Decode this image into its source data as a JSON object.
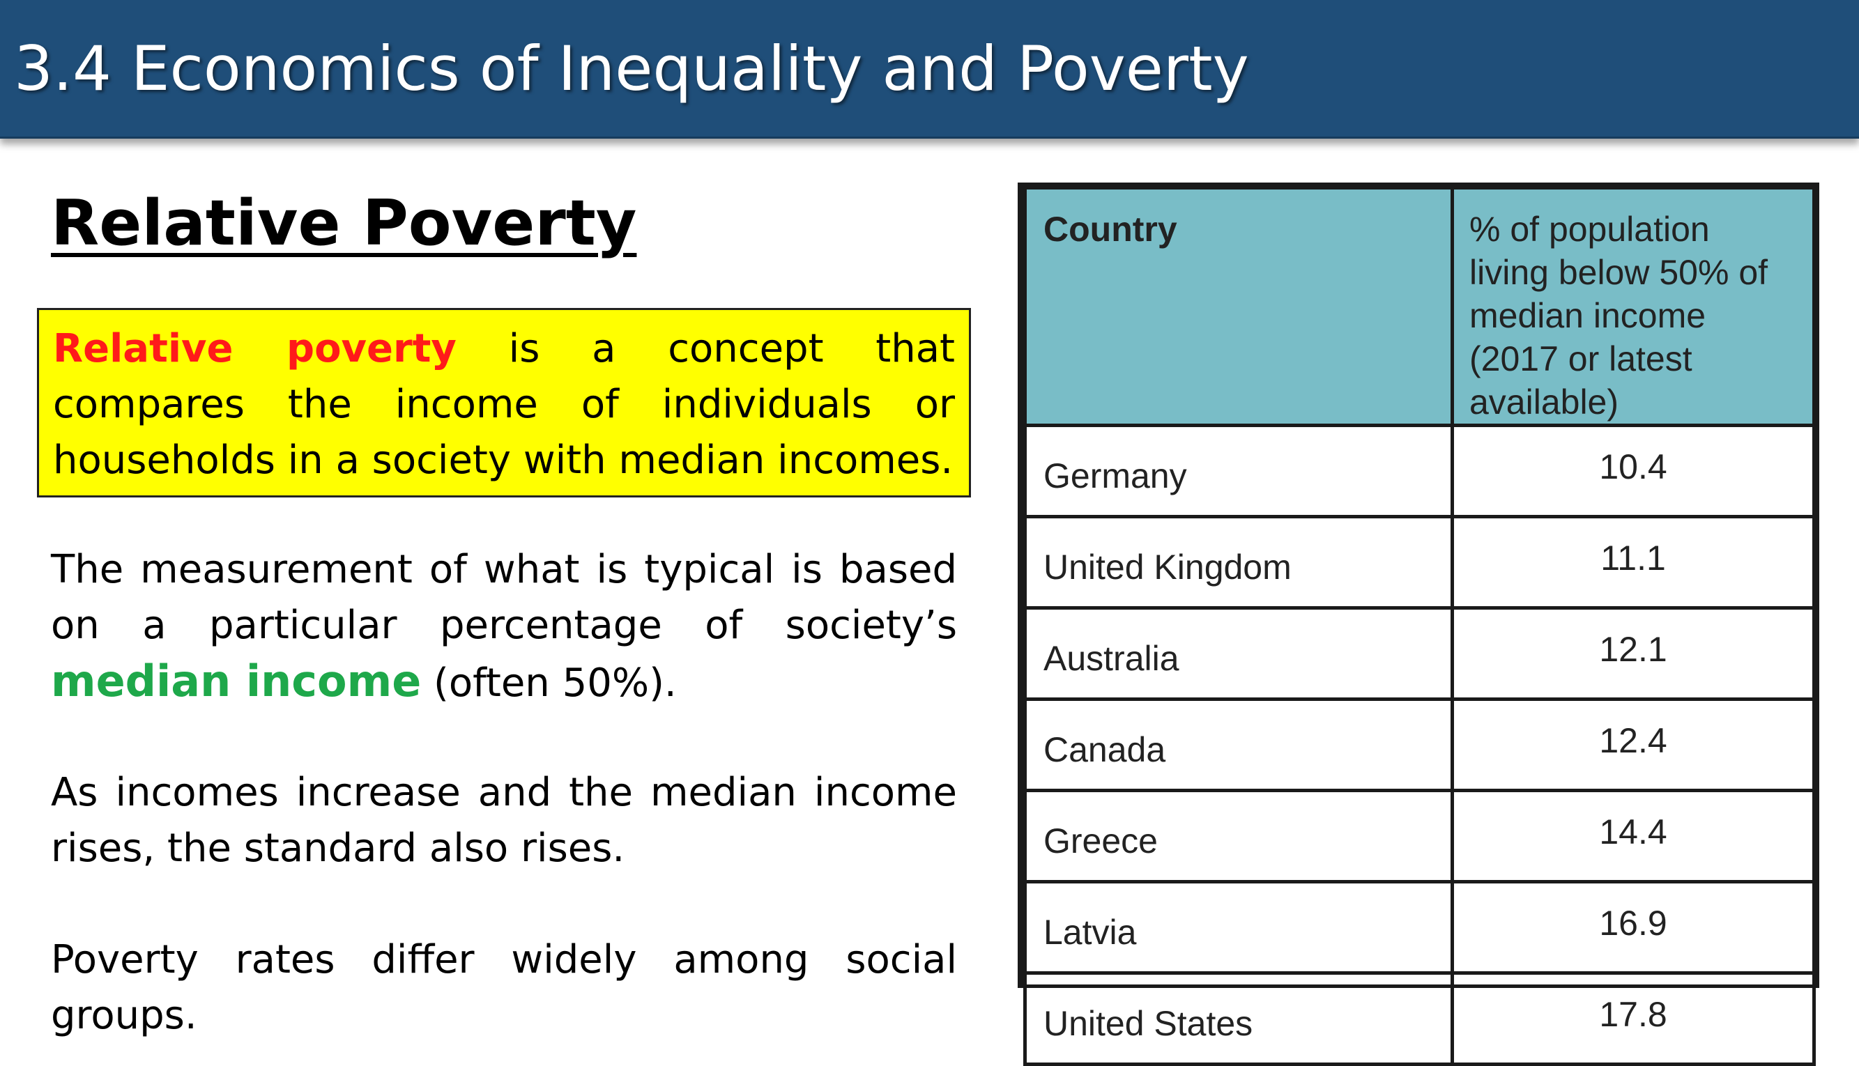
{
  "header": {
    "title": "3.4 Economics of Inequality and Poverty"
  },
  "section_title": "Relative Poverty",
  "definition": {
    "term": "Relative poverty",
    "text": " is a concept that compares the income of individuals or households in a society with median incomes."
  },
  "paragraph1": {
    "before": "The measurement of what is typical is based on a particular percentage of society’s ",
    "highlight": "median income",
    "after": " (often 50%)."
  },
  "paragraph2": "As incomes increase and the median income rises, the standard also rises.",
  "paragraph3": "Poverty rates differ widely among social groups.",
  "table": {
    "headers": [
      "Country",
      "% of population living below 50% of median income (2017 or latest available)"
    ],
    "rows": [
      {
        "country": "Germany",
        "value": "10.4"
      },
      {
        "country": "United Kingdom",
        "value": "11.1"
      },
      {
        "country": "Australia",
        "value": "12.1"
      },
      {
        "country": "Canada",
        "value": "12.4"
      },
      {
        "country": "Greece",
        "value": "14.4"
      },
      {
        "country": "Latvia",
        "value": "16.9"
      },
      {
        "country": "United States",
        "value": "17.8"
      }
    ]
  },
  "colors": {
    "header_bg": "#1f4e79",
    "definition_bg": "#ffff00",
    "term_red": "#ff1a1a",
    "highlight_green": "#1ea84a",
    "table_header_bg": "#79bdc7"
  }
}
